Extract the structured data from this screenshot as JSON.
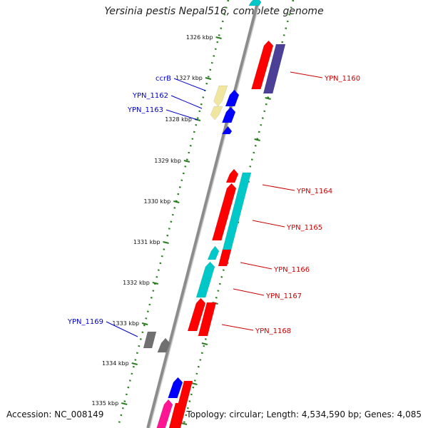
{
  "title": "Yersinia pestis Nepal516, complete genome",
  "footer": {
    "accession": "Accession: NC_008149",
    "topology": "Topology: circular; Length: 4,534,590 bp; Genes: 4,085"
  },
  "colors": {
    "backbone": "#8c8c8c",
    "tick": "#2a7d1f",
    "right_labels": "#cc0000",
    "left_labels": "#0000cc"
  },
  "ticks": [
    "1326 kbp",
    "1327 kbp",
    "1328 kbp",
    "1329 kbp",
    "1330 kbp",
    "1331 kbp",
    "1332 kbp",
    "1333 kbp",
    "1334 kbp",
    "1335 kbp"
  ],
  "labels": [
    {
      "text": "YPN_1160",
      "side": "right"
    },
    {
      "text": "YPN_1164",
      "side": "right"
    },
    {
      "text": "YPN_1165",
      "side": "right"
    },
    {
      "text": "YPN_1166",
      "side": "right"
    },
    {
      "text": "YPN_1167",
      "side": "right"
    },
    {
      "text": "YPN_1168",
      "side": "right"
    },
    {
      "text": "ccrB",
      "side": "left"
    },
    {
      "text": "YPN_1162",
      "side": "left"
    },
    {
      "text": "YPN_1163",
      "side": "left"
    },
    {
      "text": "YPN_1169",
      "side": "left"
    }
  ],
  "features": [
    {
      "name": "top-blue",
      "color": "#0000ff",
      "strand": "forward",
      "kind": "arrow"
    },
    {
      "name": "red-1160",
      "color": "#ff0000",
      "strand": "forward",
      "kind": "arrow"
    },
    {
      "name": "purple-1160",
      "color": "#4b3f96",
      "strand": "forward",
      "kind": "box"
    },
    {
      "name": "yellow-ccrB",
      "color": "#f0e6a0",
      "strand": "reverse",
      "kind": "box"
    },
    {
      "name": "blue-1162",
      "color": "#0000ff",
      "strand": "reverse",
      "kind": "arrow"
    },
    {
      "name": "yellow-lower",
      "color": "#f0e6a0",
      "strand": "reverse",
      "kind": "box"
    },
    {
      "name": "blue-1163",
      "color": "#0000ff",
      "strand": "reverse",
      "kind": "arrow"
    },
    {
      "name": "blue-small",
      "color": "#0000ff",
      "strand": "reverse",
      "kind": "arrow"
    },
    {
      "name": "red-1164",
      "color": "#ff0000",
      "strand": "forward",
      "kind": "arrow"
    },
    {
      "name": "cyan-1164",
      "color": "#00c8c8",
      "strand": "forward",
      "kind": "box"
    },
    {
      "name": "red-1165",
      "color": "#ff0000",
      "strand": "forward",
      "kind": "arrow"
    },
    {
      "name": "cyan-1165",
      "color": "#00c8c8",
      "strand": "forward",
      "kind": "box"
    },
    {
      "name": "red-1166",
      "color": "#ff0000",
      "strand": "forward",
      "kind": "arrow"
    },
    {
      "name": "cyan-1166",
      "color": "#00c8c8",
      "strand": "forward",
      "kind": "box"
    },
    {
      "name": "red-1167",
      "color": "#ff0000",
      "strand": "forward",
      "kind": "arrow"
    },
    {
      "name": "red-1168",
      "color": "#ff0000",
      "strand": "forward",
      "kind": "arrow"
    },
    {
      "name": "gray-1168",
      "color": "#707070",
      "strand": "forward",
      "kind": "box"
    },
    {
      "name": "gray-1169",
      "color": "#707070",
      "strand": "reverse",
      "kind": "box"
    },
    {
      "name": "blue-1169",
      "color": "#0000ff",
      "strand": "reverse",
      "kind": "arrow"
    },
    {
      "name": "red-bottom-1",
      "color": "#ff0000",
      "strand": "forward",
      "kind": "arrow"
    },
    {
      "name": "pink-bottom",
      "color": "#ff1493",
      "strand": "forward",
      "kind": "box"
    },
    {
      "name": "red-bottom-2",
      "color": "#ff0000",
      "strand": "forward",
      "kind": "arrow"
    },
    {
      "name": "cyan-bottom",
      "color": "#00c8c8",
      "strand": "forward",
      "kind": "box"
    }
  ]
}
